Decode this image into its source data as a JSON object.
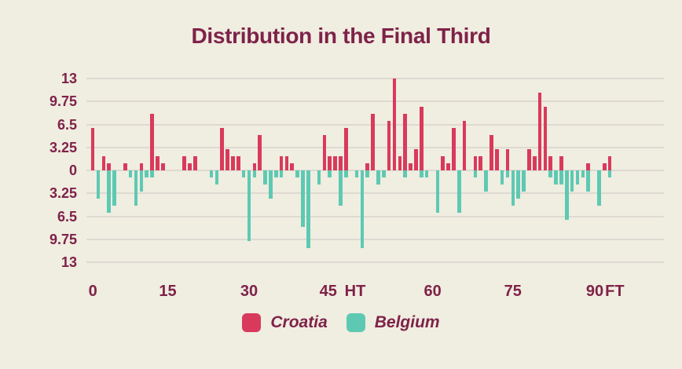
{
  "title": "Distribution in the Final Third",
  "colors": {
    "background": "#F0EDE1",
    "croatia": "#D93A5B",
    "belgium": "#5EC9B3",
    "text": "#7E2248",
    "gridline": "#DEDAD2"
  },
  "legend": [
    {
      "label": "Croatia",
      "color_key": "croatia"
    },
    {
      "label": "Belgium",
      "color_key": "belgium"
    }
  ],
  "chart_data": {
    "type": "bar",
    "subtype": "diverging-mirrored-per-minute",
    "title": "Distribution in the Final Third",
    "grid": true,
    "legend_position": "bottom",
    "y_axis": {
      "max": 13,
      "ticks": [
        {
          "label": "13",
          "value": 13
        },
        {
          "label": "9.75",
          "value": 9.75
        },
        {
          "label": "6.5",
          "value": 6.5
        },
        {
          "label": "3.25",
          "value": 3.25
        },
        {
          "label": "0",
          "value": 0
        },
        {
          "label": "3.25",
          "value": -3.25
        },
        {
          "label": "6.5",
          "value": -6.5
        },
        {
          "label": "9.75",
          "value": -9.75
        },
        {
          "label": "13",
          "value": -13
        }
      ]
    },
    "x_axis": {
      "ticks": [
        {
          "label": "0",
          "slot": 0
        },
        {
          "label": "15",
          "slot": 13.9
        },
        {
          "label": "30",
          "slot": 29.0
        },
        {
          "label": "45",
          "slot": 43.7
        },
        {
          "label": "HT",
          "slot": 48.7
        },
        {
          "label": "60",
          "slot": 63.1
        },
        {
          "label": "75",
          "slot": 78.0
        },
        {
          "label": "90",
          "slot": 93.2
        },
        {
          "label": "FT",
          "slot": 96.9
        }
      ]
    },
    "slots": 97,
    "series": [
      {
        "name": "Croatia",
        "direction": "up",
        "color_key": "croatia",
        "values": [
          6,
          0,
          2,
          1,
          0,
          0,
          1,
          0,
          0,
          1,
          0,
          8,
          2,
          1,
          0,
          0,
          0,
          2,
          1,
          2,
          0,
          0,
          0,
          0,
          6,
          3,
          2,
          2,
          0,
          0,
          1,
          5,
          0,
          0,
          0,
          2,
          2,
          1,
          0,
          0,
          0,
          0,
          0,
          5,
          2,
          2,
          2,
          6,
          0,
          0,
          0,
          1,
          8,
          0,
          0,
          7,
          13,
          2,
          8,
          1,
          3,
          9,
          0,
          0,
          0,
          2,
          1,
          6,
          0,
          7,
          0,
          2,
          2,
          0,
          5,
          3,
          0,
          3,
          0,
          0,
          0,
          3,
          2,
          11,
          9,
          2,
          0,
          2,
          0,
          0,
          0,
          0,
          1,
          0,
          0,
          1,
          2
        ]
      },
      {
        "name": "Belgium",
        "direction": "down",
        "color_key": "belgium",
        "values": [
          0,
          4,
          0,
          6,
          5,
          0,
          0,
          1,
          5,
          3,
          1,
          1,
          0,
          0,
          0,
          0,
          0,
          0,
          0,
          0,
          0,
          0,
          1,
          2,
          0,
          0,
          0,
          0,
          1,
          10,
          1,
          0,
          2,
          4,
          1,
          1,
          0,
          0,
          1,
          8,
          11,
          0,
          2,
          0,
          1,
          0,
          5,
          1,
          0,
          1,
          11,
          1,
          0,
          2,
          1,
          0,
          0,
          0,
          1,
          0,
          0,
          1,
          1,
          0,
          6,
          0,
          0,
          0,
          6,
          0,
          0,
          1,
          0,
          3,
          0,
          0,
          2,
          1,
          5,
          4,
          3,
          0,
          0,
          0,
          0,
          1,
          2,
          2,
          7,
          3,
          2,
          1,
          3,
          0,
          5,
          0,
          1
        ]
      }
    ]
  }
}
